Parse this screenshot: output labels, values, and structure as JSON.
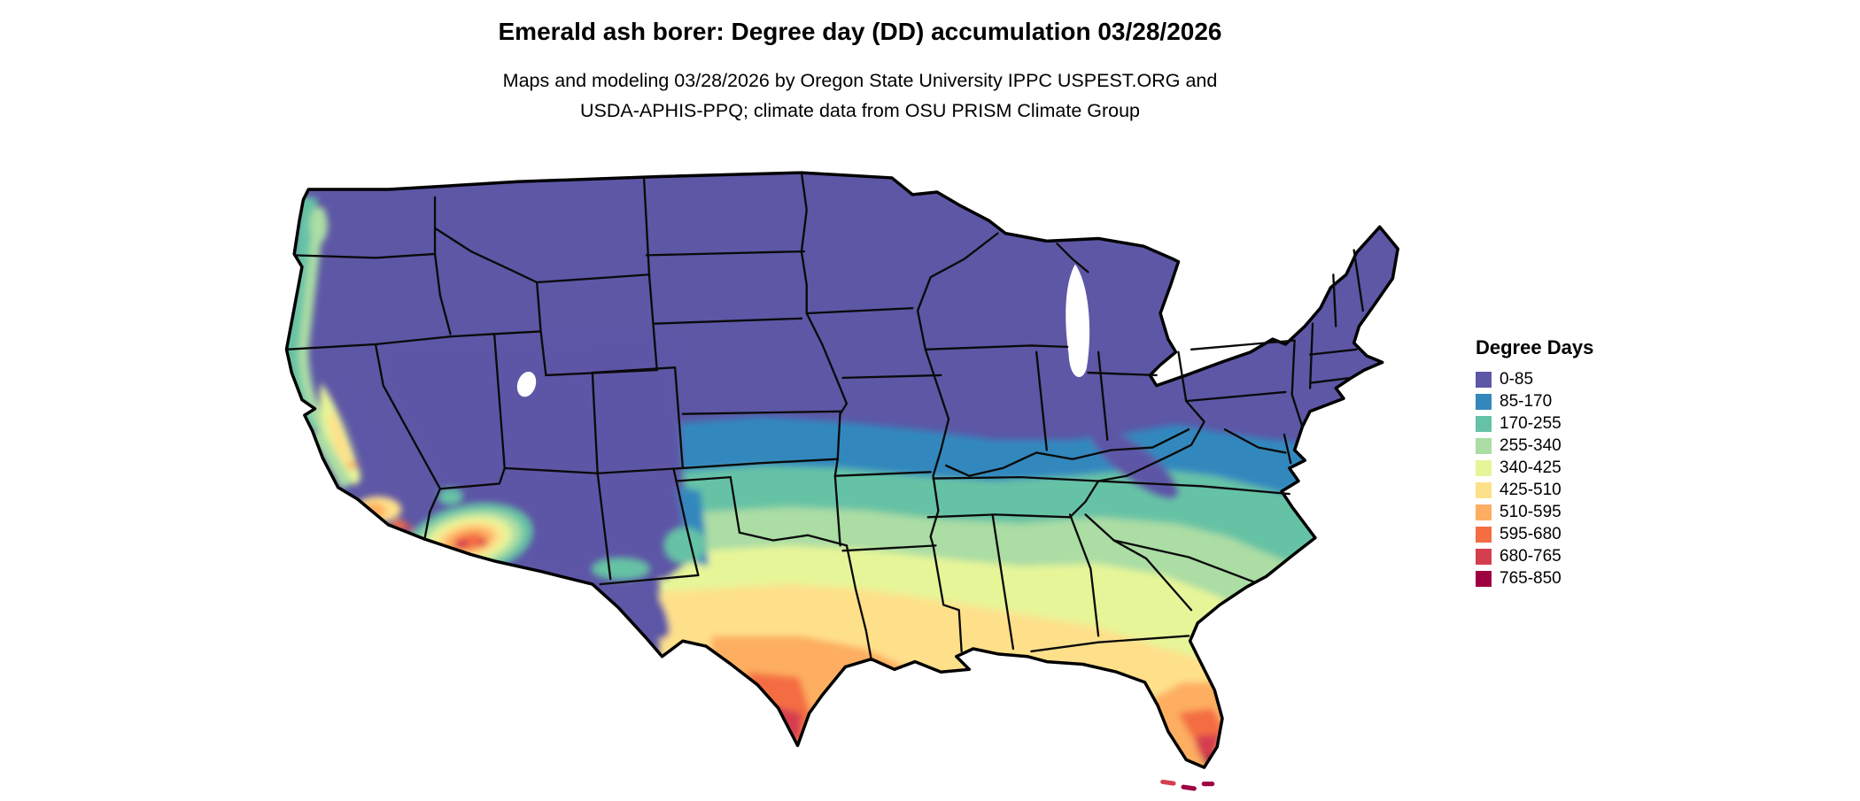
{
  "page": {
    "background": "#ffffff"
  },
  "header": {
    "title": "Emerald ash borer: Degree day (DD) accumulation 03/28/2026",
    "subtitle_line1": "Maps and modeling 03/28/2026 by Oregon State University IPPC USPEST.ORG and",
    "subtitle_line2": "USDA-APHIS-PPQ; climate data from OSU PRISM Climate Group"
  },
  "map": {
    "name": "Continental United States emerald ash borer degree-day accumulation raster map",
    "date_shown": "03/28/2026",
    "water_color": "#ffffff",
    "boundary_color": "#000000"
  },
  "legend": {
    "title": "Degree Days",
    "items": [
      {
        "label": "0-85",
        "color": "#5d57a6"
      },
      {
        "label": "85-170",
        "color": "#3288bd"
      },
      {
        "label": "170-255",
        "color": "#66c2a5"
      },
      {
        "label": "255-340",
        "color": "#abdda4"
      },
      {
        "label": "340-425",
        "color": "#e6f598"
      },
      {
        "label": "425-510",
        "color": "#fee08b"
      },
      {
        "label": "510-595",
        "color": "#fdae61"
      },
      {
        "label": "595-680",
        "color": "#f46d43"
      },
      {
        "label": "680-765",
        "color": "#d53e4f"
      },
      {
        "label": "765-850",
        "color": "#9e0142"
      }
    ]
  }
}
